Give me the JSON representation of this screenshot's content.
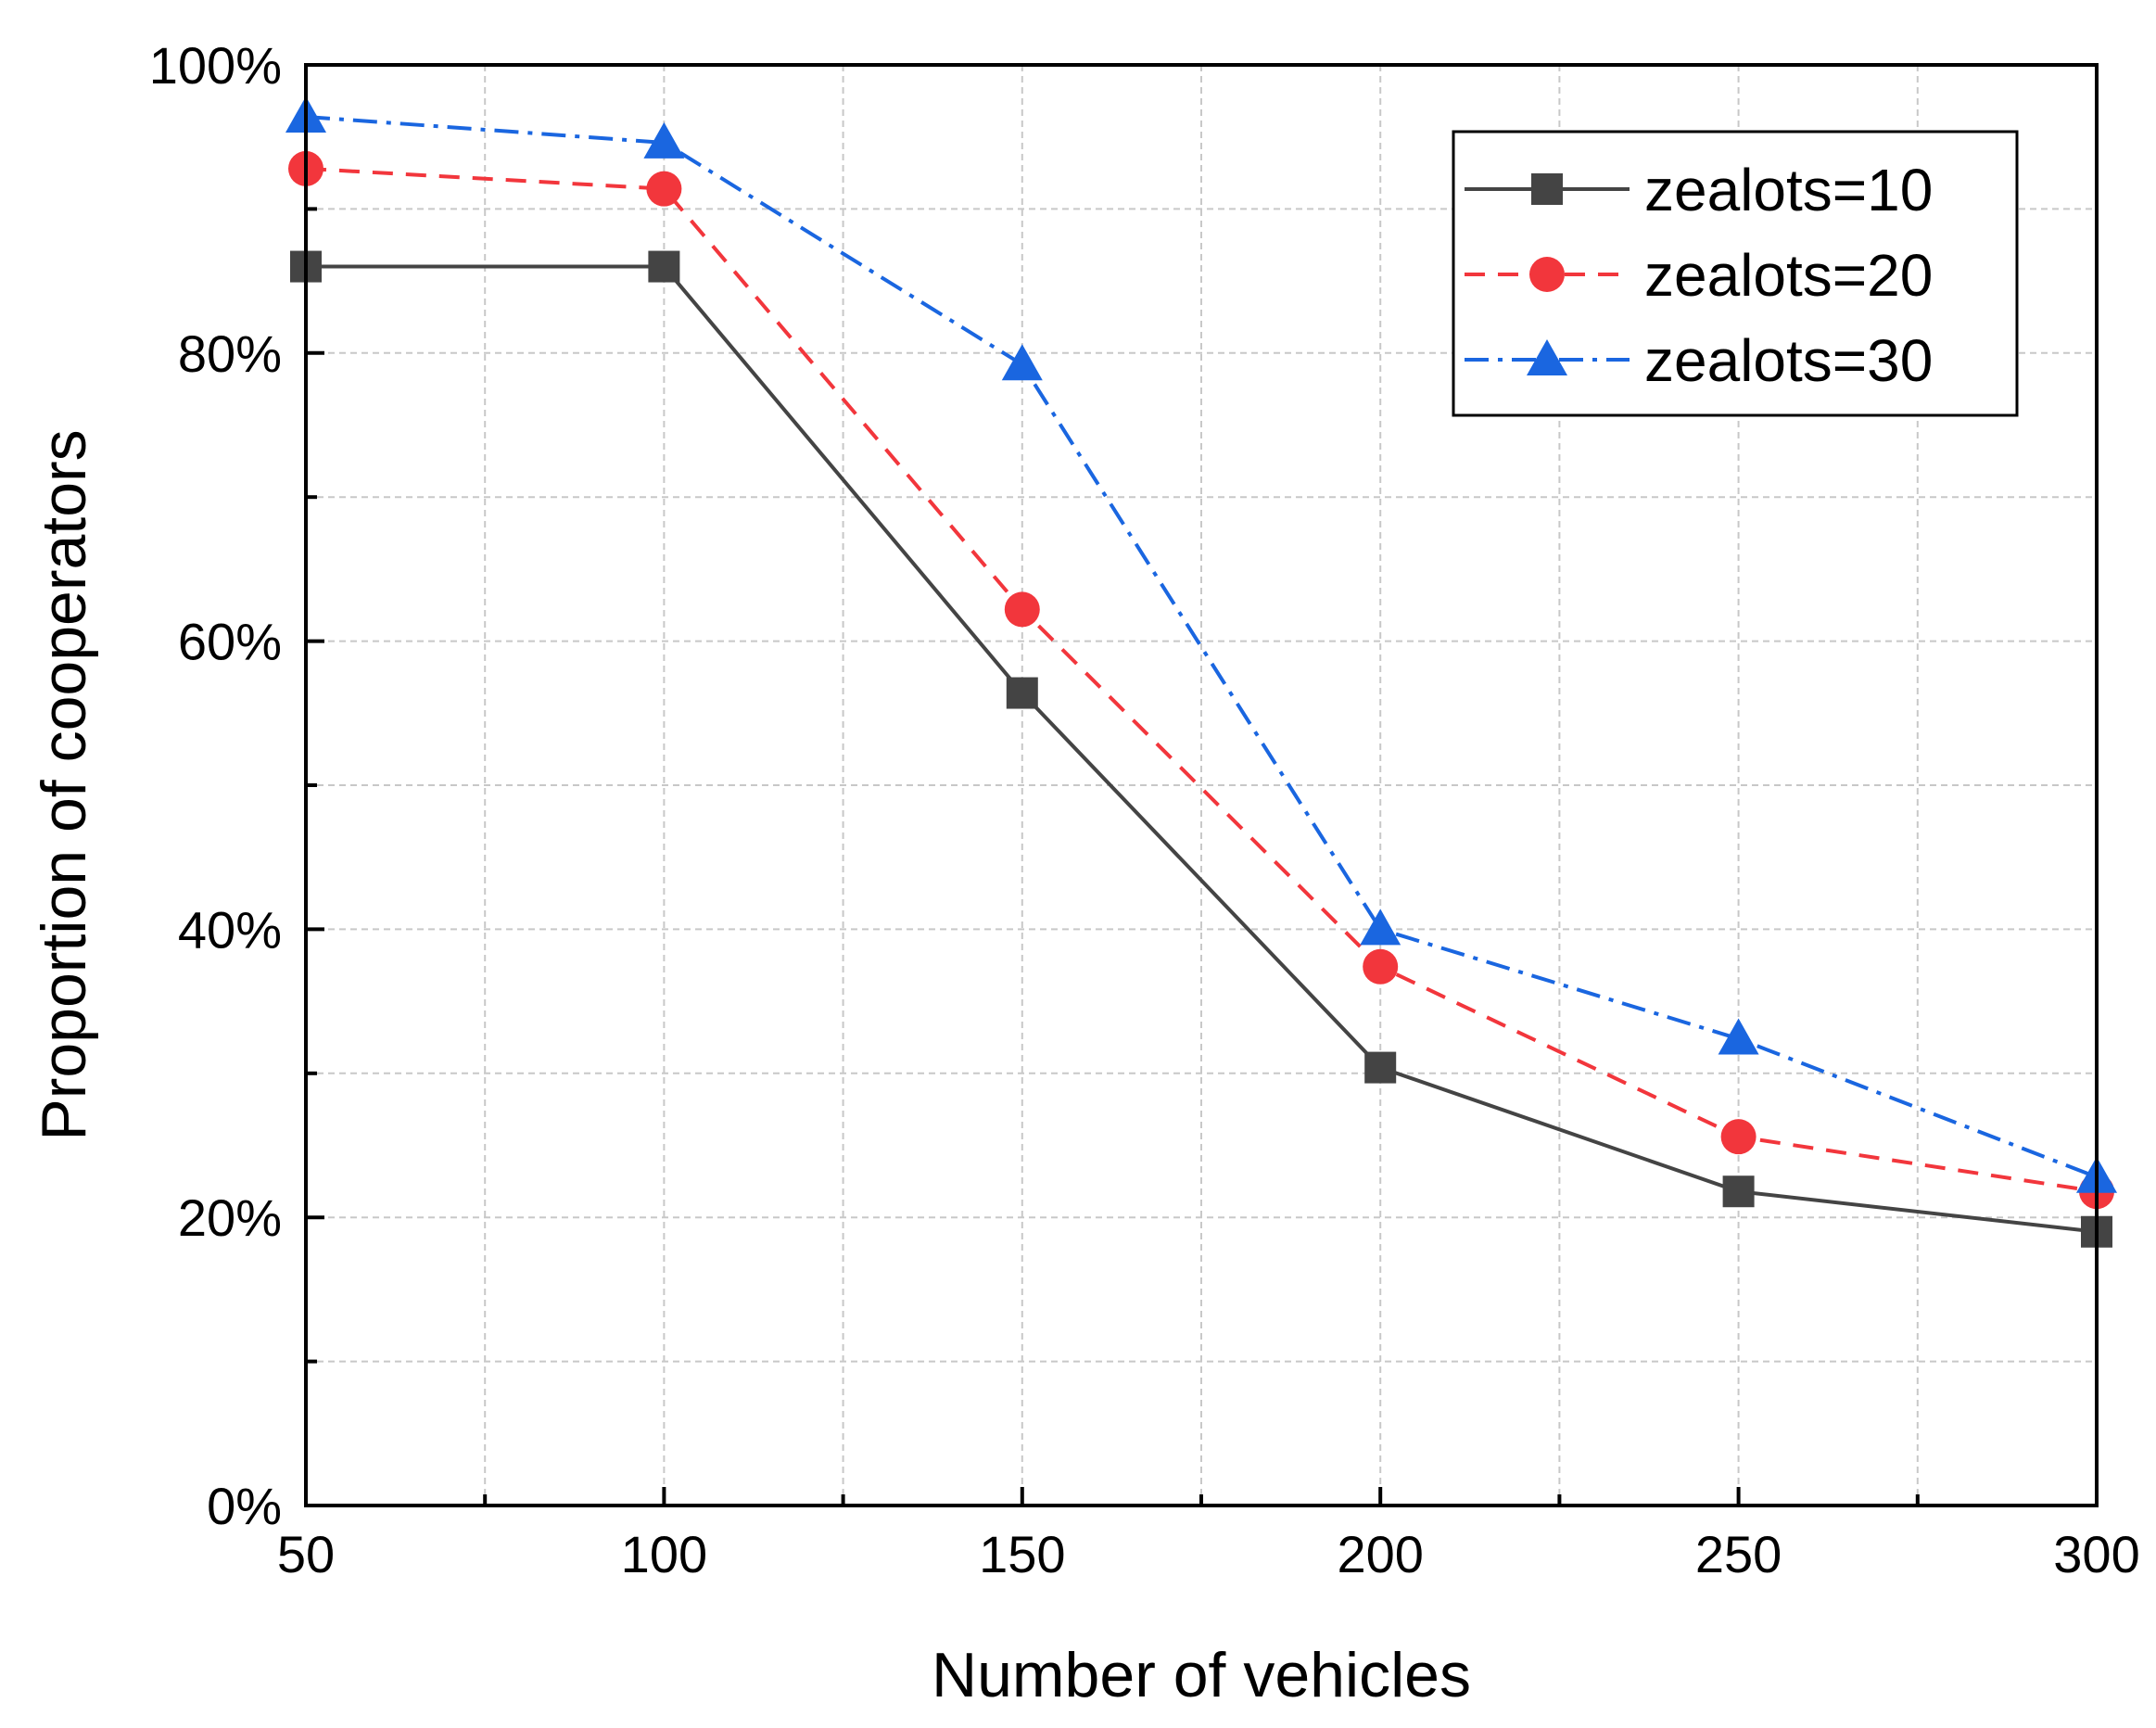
{
  "chart_data": {
    "type": "line",
    "title": "",
    "xlabel": "Number of vehicles",
    "ylabel": "Proportion of cooperators",
    "x": [
      50,
      100,
      150,
      200,
      250,
      300
    ],
    "xlim": [
      50,
      300
    ],
    "ylim": [
      0,
      100
    ],
    "xticks": [
      "50",
      "100",
      "150",
      "200",
      "250",
      "300"
    ],
    "yticks": [
      "0%",
      "20%",
      "40%",
      "60%",
      "80%",
      "100%"
    ],
    "grid": true,
    "legend_position": "top-right",
    "series": [
      {
        "name": "zealots=10",
        "values": [
          86,
          86,
          56.4,
          30.4,
          21.8,
          19
        ],
        "color": "#444444",
        "marker": "square",
        "line_style": "solid"
      },
      {
        "name": "zealots=20",
        "values": [
          92.8,
          91.4,
          62.2,
          37.4,
          25.6,
          21.8
        ],
        "color": "#f2363c",
        "marker": "circle",
        "line_style": "dashed"
      },
      {
        "name": "zealots=30",
        "values": [
          96.4,
          94.6,
          79.2,
          40,
          32.4,
          22.8
        ],
        "color": "#1a66e0",
        "marker": "triangle",
        "line_style": "dashdot"
      }
    ]
  }
}
